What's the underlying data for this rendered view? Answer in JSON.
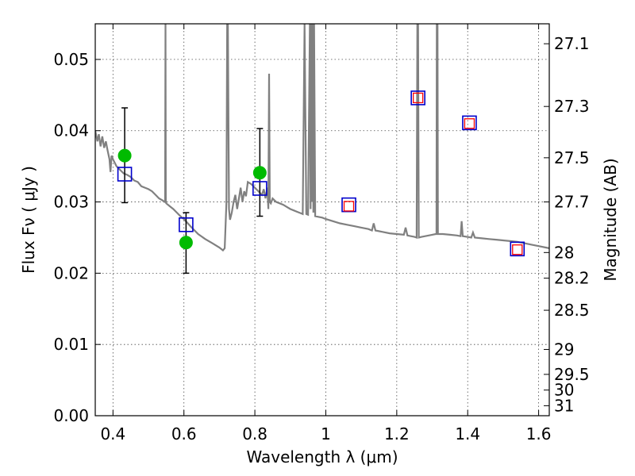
{
  "chart_data": {
    "type": "line",
    "xlabel": "Wavelength  λ (μm)",
    "ylabel": "Flux  Fν  ( μJy )",
    "ylabel_right": "Magnitude (AB)",
    "xlim": [
      0.35,
      1.63
    ],
    "ylim": [
      0.0,
      0.055
    ],
    "grid": true,
    "x_ticks": [
      0.4,
      0.6,
      0.8,
      1.0,
      1.2,
      1.4,
      1.6
    ],
    "x_tick_labels": [
      "0.4",
      "0.6",
      "0.8",
      "1",
      "1.2",
      "1.4",
      "1.6"
    ],
    "y_ticks": [
      0.0,
      0.01,
      0.02,
      0.03,
      0.04,
      0.05
    ],
    "y_tick_labels": [
      "0.00",
      "0.01",
      "0.02",
      "0.03",
      "0.04",
      "0.05"
    ],
    "right_ticks": [
      {
        "flux": 0.0522,
        "label": "27.1"
      },
      {
        "flux": 0.0434,
        "label": "27.3"
      },
      {
        "flux": 0.0362,
        "label": "27.5"
      },
      {
        "flux": 0.03,
        "label": "27.7"
      },
      {
        "flux": 0.0229,
        "label": "28"
      },
      {
        "flux": 0.0193,
        "label": "28.2"
      },
      {
        "flux": 0.0148,
        "label": "28.5"
      },
      {
        "flux": 0.0093,
        "label": "29"
      },
      {
        "flux": 0.0058,
        "label": "29.5"
      },
      {
        "flux": 0.0036,
        "label": "30"
      },
      {
        "flux": 0.0014,
        "label": "31"
      }
    ],
    "series": [
      {
        "kind": "model_spectrum",
        "color": "#808080",
        "points": [
          [
            0.35,
            0.04
          ],
          [
            0.356,
            0.0385
          ],
          [
            0.36,
            0.0395
          ],
          [
            0.365,
            0.0378
          ],
          [
            0.37,
            0.0392
          ],
          [
            0.375,
            0.0376
          ],
          [
            0.38,
            0.0385
          ],
          [
            0.385,
            0.0372
          ],
          [
            0.39,
            0.036
          ],
          [
            0.393,
            0.0342
          ],
          [
            0.396,
            0.0365
          ],
          [
            0.4,
            0.036
          ],
          [
            0.41,
            0.035
          ],
          [
            0.42,
            0.0345
          ],
          [
            0.43,
            0.034
          ],
          [
            0.44,
            0.0338
          ],
          [
            0.45,
            0.0335
          ],
          [
            0.46,
            0.033
          ],
          [
            0.47,
            0.0328
          ],
          [
            0.48,
            0.0322
          ],
          [
            0.49,
            0.032
          ],
          [
            0.5,
            0.0318
          ],
          [
            0.51,
            0.0315
          ],
          [
            0.52,
            0.031
          ],
          [
            0.53,
            0.0305
          ],
          [
            0.54,
            0.0302
          ],
          [
            0.545,
            0.03
          ],
          [
            0.547,
            0.03
          ],
          [
            0.548,
            0.055
          ],
          [
            0.549,
            0.03
          ],
          [
            0.55,
            0.0298
          ],
          [
            0.56,
            0.0294
          ],
          [
            0.57,
            0.029
          ],
          [
            0.58,
            0.0285
          ],
          [
            0.59,
            0.028
          ],
          [
            0.6,
            0.0276
          ],
          [
            0.62,
            0.0265
          ],
          [
            0.64,
            0.0255
          ],
          [
            0.66,
            0.0248
          ],
          [
            0.68,
            0.0242
          ],
          [
            0.7,
            0.0236
          ],
          [
            0.71,
            0.0232
          ],
          [
            0.715,
            0.0235
          ],
          [
            0.72,
            0.03
          ],
          [
            0.722,
            0.055
          ],
          [
            0.724,
            0.055
          ],
          [
            0.727,
            0.029
          ],
          [
            0.73,
            0.0275
          ],
          [
            0.735,
            0.0285
          ],
          [
            0.74,
            0.03
          ],
          [
            0.745,
            0.031
          ],
          [
            0.75,
            0.029
          ],
          [
            0.755,
            0.0305
          ],
          [
            0.76,
            0.032
          ],
          [
            0.765,
            0.03
          ],
          [
            0.77,
            0.0315
          ],
          [
            0.775,
            0.0308
          ],
          [
            0.78,
            0.0328
          ],
          [
            0.79,
            0.0325
          ],
          [
            0.8,
            0.032
          ],
          [
            0.81,
            0.0315
          ],
          [
            0.82,
            0.031
          ],
          [
            0.825,
            0.0318
          ],
          [
            0.83,
            0.0305
          ],
          [
            0.835,
            0.032
          ],
          [
            0.838,
            0.029
          ],
          [
            0.84,
            0.048
          ],
          [
            0.842,
            0.03
          ],
          [
            0.845,
            0.0298
          ],
          [
            0.85,
            0.0305
          ],
          [
            0.86,
            0.03
          ],
          [
            0.87,
            0.0298
          ],
          [
            0.88,
            0.0296
          ],
          [
            0.89,
            0.0293
          ],
          [
            0.9,
            0.029
          ],
          [
            0.91,
            0.0288
          ],
          [
            0.92,
            0.0286
          ],
          [
            0.93,
            0.0284
          ],
          [
            0.935,
            0.0283
          ],
          [
            0.94,
            0.055
          ],
          [
            0.945,
            0.0283
          ],
          [
            0.95,
            0.0282
          ],
          [
            0.955,
            0.055
          ],
          [
            0.957,
            0.029
          ],
          [
            0.959,
            0.055
          ],
          [
            0.961,
            0.03
          ],
          [
            0.963,
            0.055
          ],
          [
            0.965,
            0.0285
          ],
          [
            0.967,
            0.055
          ],
          [
            0.97,
            0.028
          ],
          [
            0.98,
            0.0279
          ],
          [
            0.99,
            0.0278
          ],
          [
            1.0,
            0.0276
          ],
          [
            1.02,
            0.0273
          ],
          [
            1.04,
            0.027
          ],
          [
            1.06,
            0.0268
          ],
          [
            1.08,
            0.0266
          ],
          [
            1.1,
            0.0264
          ],
          [
            1.12,
            0.0262
          ],
          [
            1.13,
            0.026
          ],
          [
            1.135,
            0.027
          ],
          [
            1.14,
            0.026
          ],
          [
            1.16,
            0.0258
          ],
          [
            1.18,
            0.0256
          ],
          [
            1.2,
            0.0255
          ],
          [
            1.22,
            0.0254
          ],
          [
            1.225,
            0.0264
          ],
          [
            1.23,
            0.0253
          ],
          [
            1.24,
            0.0252
          ],
          [
            1.25,
            0.0251
          ],
          [
            1.256,
            0.025
          ],
          [
            1.258,
            0.055
          ],
          [
            1.26,
            0.055
          ],
          [
            1.262,
            0.025
          ],
          [
            1.27,
            0.0251
          ],
          [
            1.28,
            0.0252
          ],
          [
            1.29,
            0.0253
          ],
          [
            1.3,
            0.0254
          ],
          [
            1.31,
            0.0255
          ],
          [
            1.312,
            0.0255
          ],
          [
            1.313,
            0.055
          ],
          [
            1.315,
            0.055
          ],
          [
            1.316,
            0.0255
          ],
          [
            1.33,
            0.0255
          ],
          [
            1.35,
            0.0254
          ],
          [
            1.37,
            0.0253
          ],
          [
            1.38,
            0.0252
          ],
          [
            1.383,
            0.0273
          ],
          [
            1.386,
            0.0252
          ],
          [
            1.4,
            0.0251
          ],
          [
            1.41,
            0.025
          ],
          [
            1.415,
            0.0257
          ],
          [
            1.42,
            0.025
          ],
          [
            1.44,
            0.0249
          ],
          [
            1.46,
            0.0248
          ],
          [
            1.48,
            0.0247
          ],
          [
            1.5,
            0.0246
          ],
          [
            1.52,
            0.0245
          ],
          [
            1.54,
            0.0244
          ],
          [
            1.56,
            0.0242
          ],
          [
            1.58,
            0.024
          ],
          [
            1.6,
            0.0238
          ],
          [
            1.62,
            0.0236
          ],
          [
            1.63,
            0.0235
          ]
        ]
      },
      {
        "kind": "observed_photometry",
        "color": "#00bb00",
        "points": [
          {
            "x": 0.433,
            "y": 0.0365,
            "err_low": 0.0299,
            "err_high": 0.0432
          },
          {
            "x": 0.606,
            "y": 0.0243,
            "err_low": 0.02,
            "err_high": 0.0285
          },
          {
            "x": 0.814,
            "y": 0.0341,
            "err_low": 0.028,
            "err_high": 0.0403
          }
        ]
      },
      {
        "kind": "model_photometry",
        "color": "#0000cc",
        "points": [
          {
            "x": 0.433,
            "y": 0.0339
          },
          {
            "x": 0.606,
            "y": 0.0268
          },
          {
            "x": 0.814,
            "y": 0.0319
          },
          {
            "x": 1.065,
            "y": 0.0296
          },
          {
            "x": 1.26,
            "y": 0.0446
          },
          {
            "x": 1.405,
            "y": 0.0411
          },
          {
            "x": 1.54,
            "y": 0.0234
          }
        ]
      },
      {
        "kind": "model_photometry_inner",
        "color": "#ff0000",
        "points": [
          {
            "x": 1.065,
            "y": 0.0294
          },
          {
            "x": 1.26,
            "y": 0.0446
          },
          {
            "x": 1.405,
            "y": 0.041
          },
          {
            "x": 1.54,
            "y": 0.0233
          }
        ]
      }
    ]
  }
}
